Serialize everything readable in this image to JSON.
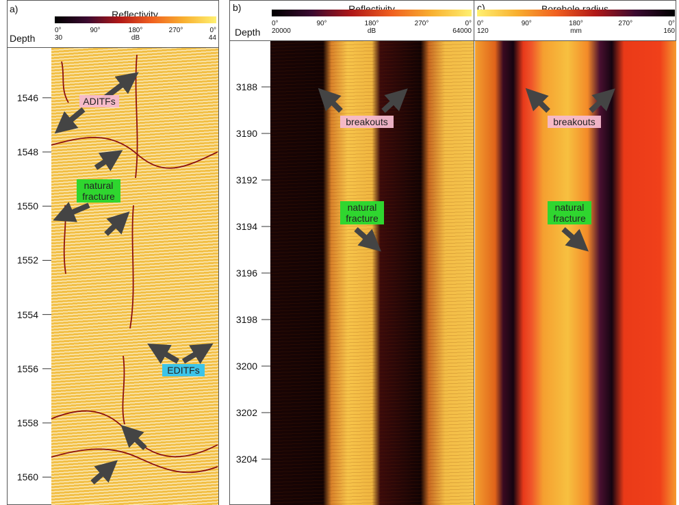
{
  "panels": [
    {
      "label": "a)",
      "title": "Reflectivity",
      "depth_label": "Depth",
      "colorbar": {
        "azimuth_ticks": [
          "0°",
          "90°",
          "180°",
          "270°",
          "0°"
        ],
        "min": "30",
        "unit": "dB",
        "max": "44"
      },
      "depth_range": [
        1544.16,
        1561.03
      ],
      "depth_ticks": [
        1546,
        1548,
        1550,
        1552,
        1554,
        1556,
        1558,
        1560
      ],
      "annotations": [
        "ADITFs",
        "natural fracture",
        "EDITFs"
      ]
    },
    {
      "label": "b)",
      "title": "Reflectivity",
      "depth_label": "Depth",
      "colorbar": {
        "azimuth_ticks": [
          "0°",
          "90°",
          "180°",
          "270°",
          "0°"
        ],
        "min": "20000",
        "unit": "dB",
        "max": "64000"
      },
      "depth_range": [
        3186.03,
        3205.97
      ],
      "depth_ticks": [
        3188,
        3190,
        3192,
        3194,
        3196,
        3198,
        3200,
        3202,
        3204
      ],
      "annotations": [
        "breakouts",
        "natural fracture"
      ]
    },
    {
      "label": "c)",
      "title": "Borehole radius",
      "colorbar": {
        "azimuth_ticks": [
          "0°",
          "90°",
          "180°",
          "270°",
          "0°"
        ],
        "min": "120",
        "unit": "mm",
        "max": "160"
      },
      "annotations": [
        "breakouts",
        "natural fracture"
      ]
    }
  ]
}
